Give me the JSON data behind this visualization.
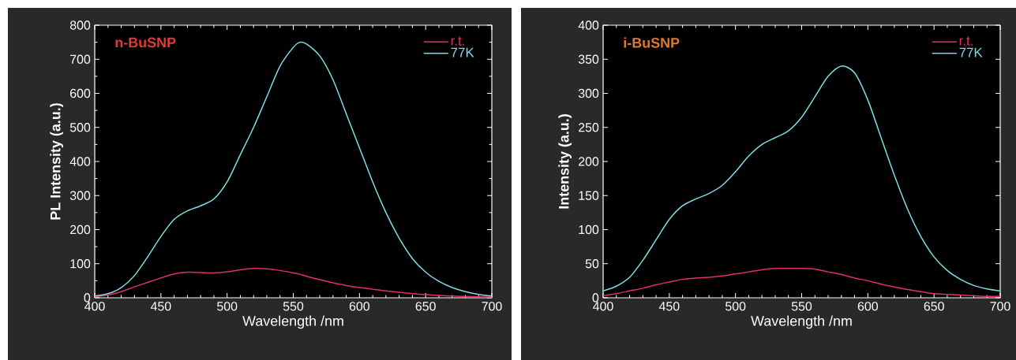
{
  "chart_data": [
    {
      "type": "line",
      "annotations": [
        "n-BuSNP"
      ],
      "xlabel": "Wavelength /nm",
      "ylabel": "PL Intensity (a.u.)",
      "x": [
        400,
        410,
        420,
        430,
        440,
        450,
        460,
        470,
        480,
        490,
        500,
        510,
        520,
        530,
        540,
        550,
        555,
        560,
        570,
        580,
        590,
        600,
        610,
        620,
        630,
        640,
        650,
        660,
        670,
        680,
        690,
        700
      ],
      "series": [
        {
          "name": "r.t.",
          "color": "#e0306a",
          "values": [
            3,
            8,
            18,
            32,
            45,
            58,
            70,
            75,
            74,
            73,
            76,
            82,
            86,
            85,
            80,
            73,
            69,
            63,
            53,
            44,
            36,
            30,
            25,
            20,
            16,
            12,
            9,
            7,
            5,
            4,
            3,
            2
          ]
        },
        {
          "name": "77K",
          "color": "#7fdde6",
          "values": [
            5,
            12,
            30,
            65,
            120,
            180,
            230,
            255,
            270,
            290,
            340,
            420,
            500,
            590,
            680,
            735,
            750,
            745,
            710,
            640,
            540,
            440,
            340,
            250,
            175,
            115,
            75,
            48,
            30,
            18,
            10,
            5
          ]
        }
      ],
      "xlim": [
        400,
        700
      ],
      "ylim": [
        0,
        800
      ],
      "xticks": [
        400,
        450,
        500,
        550,
        600,
        650,
        700
      ],
      "yticks": [
        0,
        100,
        200,
        300,
        400,
        500,
        600,
        700,
        800
      ],
      "legend": "top right",
      "marker": "none"
    },
    {
      "type": "line",
      "annotations": [
        "i-BuSNP"
      ],
      "xlabel": "Wavelength /nm",
      "ylabel": "Intensity (a.u.)",
      "x": [
        400,
        410,
        420,
        430,
        440,
        450,
        460,
        470,
        480,
        490,
        500,
        510,
        520,
        530,
        540,
        550,
        560,
        570,
        580,
        590,
        600,
        610,
        620,
        630,
        640,
        650,
        660,
        670,
        680,
        690,
        700
      ],
      "series": [
        {
          "name": "r.t.",
          "color": "#e0306a",
          "values": [
            3,
            6,
            10,
            14,
            19,
            23,
            27,
            29,
            30,
            32,
            35,
            38,
            41,
            43,
            43,
            43,
            42,
            38,
            34,
            29,
            25,
            20,
            16,
            12,
            9,
            6,
            5,
            4,
            3,
            2,
            2
          ]
        },
        {
          "name": "77K",
          "color": "#7fdde6",
          "values": [
            10,
            17,
            30,
            55,
            85,
            115,
            135,
            145,
            153,
            165,
            185,
            208,
            225,
            235,
            245,
            265,
            295,
            325,
            340,
            330,
            290,
            235,
            180,
            130,
            90,
            60,
            40,
            27,
            18,
            13,
            10
          ]
        }
      ],
      "xlim": [
        400,
        700
      ],
      "ylim": [
        0,
        400
      ],
      "xticks": [
        400,
        450,
        500,
        550,
        600,
        650,
        700
      ],
      "yticks": [
        0,
        50,
        100,
        150,
        200,
        250,
        300,
        350,
        400
      ],
      "legend": "top right",
      "marker": "none"
    }
  ]
}
